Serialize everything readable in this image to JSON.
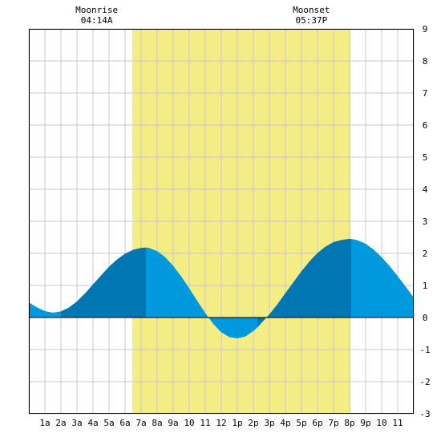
{
  "chart_data": {
    "type": "area",
    "title": "",
    "xlabel": "",
    "ylabel": "",
    "xlim": [
      0,
      24
    ],
    "ylim": [
      -3,
      9
    ],
    "grid": true,
    "x_tick_labels": [
      "1a",
      "2a",
      "3a",
      "4a",
      "5a",
      "6a",
      "7a",
      "8a",
      "9a",
      "10",
      "11",
      "12",
      "1p",
      "2p",
      "3p",
      "4p",
      "5p",
      "6p",
      "7p",
      "8p",
      "9p",
      "10",
      "11"
    ],
    "y_tick_labels": [
      "-3",
      "-2",
      "-1",
      "0",
      "1",
      "2",
      "3",
      "4",
      "5",
      "6",
      "7",
      "8",
      "9"
    ],
    "daylight_band": {
      "start_hour": 6.45,
      "end_hour": 20.05,
      "color": "#f4ec84"
    },
    "moon_events": [
      {
        "label": "Moonrise",
        "time": "04:14A",
        "hour": 4.233
      },
      {
        "label": "Moonset",
        "time": "05:37P",
        "hour": 17.617
      }
    ],
    "series": [
      {
        "color": "#0099dd",
        "dark_color": "#0077b3",
        "x": [
          0,
          0.5,
          1,
          1.5,
          2,
          2.5,
          3,
          3.5,
          4,
          4.5,
          5,
          5.5,
          6,
          6.5,
          7,
          7.3,
          7.5,
          8,
          8.5,
          9,
          9.5,
          10,
          10.5,
          11,
          11.5,
          12,
          12.5,
          13,
          13.5,
          14,
          14.25,
          14.5,
          15,
          15.5,
          16,
          16.5,
          17,
          17.5,
          18,
          18.5,
          19,
          19.5,
          20,
          20.1,
          20.5,
          21,
          21.5,
          22,
          22.5,
          23,
          23.5,
          24
        ],
        "y": [
          0.47,
          0.32,
          0.2,
          0.15,
          0.19,
          0.31,
          0.5,
          0.75,
          1.03,
          1.31,
          1.58,
          1.81,
          1.99,
          2.11,
          2.17,
          2.18,
          2.17,
          2.07,
          1.88,
          1.61,
          1.28,
          0.91,
          0.52,
          0.14,
          -0.2,
          -0.46,
          -0.61,
          -0.65,
          -0.59,
          -0.42,
          -0.31,
          -0.17,
          0.1,
          0.41,
          0.76,
          1.1,
          1.44,
          1.75,
          2.01,
          2.21,
          2.35,
          2.42,
          2.45,
          2.45,
          2.41,
          2.3,
          2.12,
          1.88,
          1.6,
          1.29,
          0.96,
          0.62
        ]
      }
    ],
    "shade_bands": [
      {
        "start_hour": 2.0,
        "end_hour": 7.3
      },
      {
        "start_hour": 14.25,
        "end_hour": 20.1
      }
    ]
  }
}
